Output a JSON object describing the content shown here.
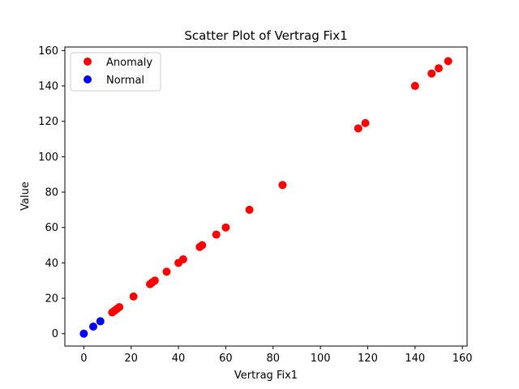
{
  "chart_data": {
    "type": "scatter",
    "title": "Scatter Plot of Vertrag Fix1",
    "xlabel": "Vertrag Fix1",
    "ylabel": "Value",
    "xlim": [
      -8,
      162
    ],
    "ylim": [
      -7,
      162
    ],
    "xticks": [
      0,
      20,
      40,
      60,
      80,
      100,
      120,
      140,
      160
    ],
    "yticks": [
      0,
      20,
      40,
      60,
      80,
      100,
      120,
      140,
      160
    ],
    "grid": false,
    "legend_position": "top-left",
    "series": [
      {
        "name": "Anomaly",
        "color": "#ff0000",
        "points": [
          [
            12,
            12
          ],
          [
            13,
            13
          ],
          [
            14,
            14
          ],
          [
            15,
            15
          ],
          [
            21,
            21
          ],
          [
            28,
            28
          ],
          [
            29,
            29
          ],
          [
            30,
            30
          ],
          [
            35,
            35
          ],
          [
            40,
            40
          ],
          [
            42,
            42
          ],
          [
            49,
            49
          ],
          [
            50,
            50
          ],
          [
            56,
            56
          ],
          [
            60,
            60
          ],
          [
            70,
            70
          ],
          [
            84,
            84
          ],
          [
            116,
            116
          ],
          [
            119,
            119
          ],
          [
            140,
            140
          ],
          [
            147,
            147
          ],
          [
            150,
            150
          ],
          [
            154,
            154
          ]
        ]
      },
      {
        "name": "Normal",
        "color": "#0000ff",
        "points": [
          [
            0,
            0
          ],
          [
            4,
            4
          ],
          [
            7,
            7
          ]
        ]
      }
    ]
  }
}
